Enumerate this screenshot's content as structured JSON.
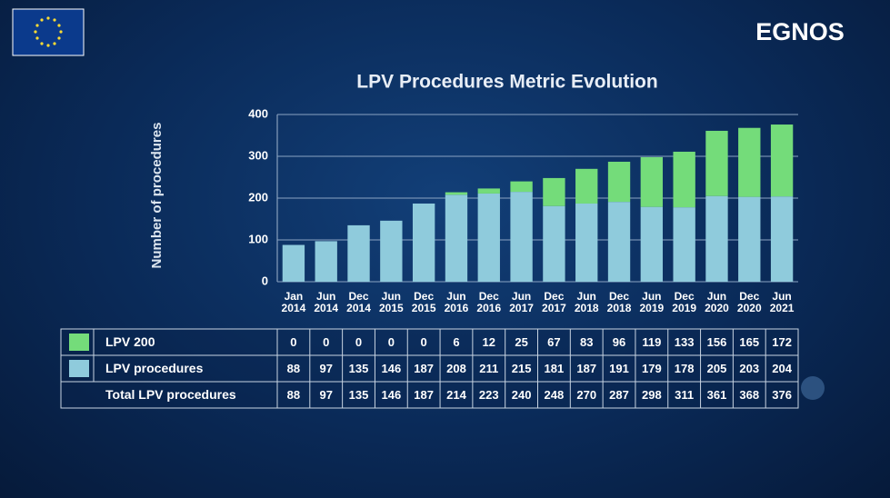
{
  "logo": "EGNOS",
  "chart_data": {
    "type": "bar",
    "stacked": true,
    "title": "LPV Procedures Metric Evolution",
    "y_label": "Number of procedures",
    "categories": [
      "Jan 2014",
      "Jun 2014",
      "Dec 2014",
      "Jun 2015",
      "Dec 2015",
      "Jun 2016",
      "Dec 2016",
      "Jun 2017",
      "Dec 2017",
      "Jun 2018",
      "Dec 2018",
      "Jun 2019",
      "Dec 2019",
      "Jun 2020",
      "Dec 2020",
      "Jun 2021"
    ],
    "series": [
      {
        "name": "LPV 200",
        "color": "#74dc7a",
        "values": [
          0,
          0,
          0,
          0,
          0,
          6,
          12,
          25,
          67,
          83,
          96,
          119,
          133,
          156,
          165,
          172
        ]
      },
      {
        "name": "LPV procedures",
        "color": "#8fcbdc",
        "values": [
          88,
          97,
          135,
          146,
          187,
          208,
          211,
          215,
          181,
          187,
          191,
          179,
          178,
          205,
          203,
          204
        ]
      }
    ],
    "totals_label": "Total LPV procedures",
    "totals": [
      88,
      97,
      135,
      146,
      187,
      214,
      223,
      240,
      248,
      270,
      287,
      298,
      311,
      361,
      368,
      376
    ],
    "ylim": [
      0,
      400
    ],
    "yticks": [
      0,
      100,
      200,
      300,
      400
    ],
    "grid": true
  }
}
